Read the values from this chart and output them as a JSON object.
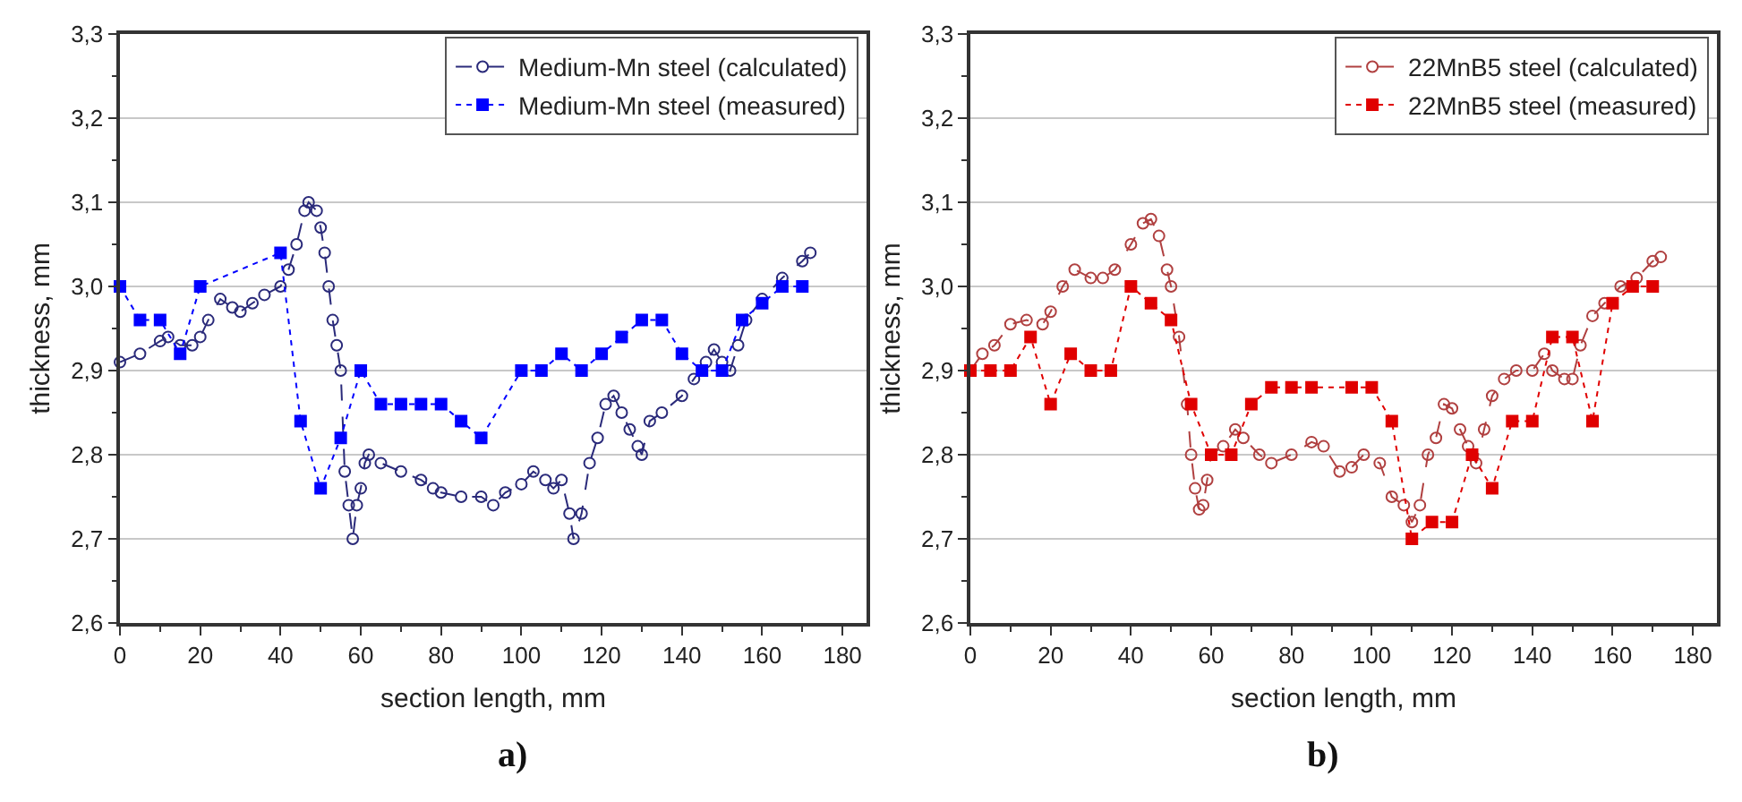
{
  "chart_data": [
    {
      "type": "line",
      "xlabel": "section length, mm",
      "ylabel": "thickness, mm",
      "annotations": [
        "a)"
      ],
      "xlim": [
        0,
        186
      ],
      "xticks": [
        0,
        20,
        40,
        60,
        80,
        100,
        120,
        140,
        160,
        180
      ],
      "ylim": [
        2.6,
        3.3
      ],
      "yticks": [
        {
          "value": 2.6,
          "label": "2,6"
        },
        {
          "value": 2.7,
          "label": "2,7"
        },
        {
          "value": 2.8,
          "label": "2,8"
        },
        {
          "value": 2.9,
          "label": "2,9"
        },
        {
          "value": 3.0,
          "label": "3,0"
        },
        {
          "value": 3.1,
          "label": "3,1"
        },
        {
          "value": 3.2,
          "label": "3,2"
        },
        {
          "value": 3.3,
          "label": "3,3"
        }
      ],
      "grid": "y",
      "legend": "top right",
      "series": [
        {
          "name": "Medium-Mn steel (calculated)",
          "color": "#2a2a7a",
          "marker": "circle",
          "line_style": "dashed",
          "x": [
            0,
            5,
            10,
            12,
            15,
            18,
            20,
            22,
            25,
            28,
            30,
            33,
            36,
            40,
            42,
            44,
            46,
            47,
            49,
            50,
            51,
            52,
            53,
            54,
            55,
            56,
            57,
            58,
            59,
            60,
            61,
            62,
            65,
            70,
            75,
            78,
            80,
            85,
            90,
            93,
            96,
            100,
            103,
            106,
            108,
            110,
            112,
            113,
            115,
            117,
            119,
            121,
            123,
            125,
            127,
            129,
            130,
            132,
            135,
            140,
            143,
            146,
            148,
            150,
            152,
            154,
            156,
            160,
            165,
            170,
            172
          ],
          "values": [
            2.91,
            2.92,
            2.935,
            2.94,
            2.93,
            2.93,
            2.94,
            2.96,
            2.985,
            2.975,
            2.97,
            2.98,
            2.99,
            3.0,
            3.02,
            3.05,
            3.09,
            3.1,
            3.09,
            3.07,
            3.04,
            3.0,
            2.96,
            2.93,
            2.9,
            2.78,
            2.74,
            2.7,
            2.74,
            2.76,
            2.79,
            2.8,
            2.79,
            2.78,
            2.77,
            2.76,
            2.755,
            2.75,
            2.75,
            2.74,
            2.755,
            2.765,
            2.78,
            2.77,
            2.76,
            2.77,
            2.73,
            2.7,
            2.73,
            2.79,
            2.82,
            2.86,
            2.87,
            2.85,
            2.83,
            2.81,
            2.8,
            2.84,
            2.85,
            2.87,
            2.89,
            2.91,
            2.925,
            2.91,
            2.9,
            2.93,
            2.96,
            2.985,
            3.01,
            3.03,
            3.04
          ]
        },
        {
          "name": "Medium-Mn steel (measured)",
          "color": "#0000ff",
          "marker": "square",
          "line_style": "dotted",
          "x": [
            0,
            5,
            10,
            15,
            20,
            40,
            45,
            50,
            55,
            60,
            65,
            70,
            75,
            80,
            85,
            90,
            100,
            105,
            110,
            115,
            120,
            125,
            130,
            135,
            140,
            145,
            150,
            155,
            160,
            165,
            170
          ],
          "values": [
            3.0,
            2.96,
            2.96,
            2.92,
            3.0,
            3.04,
            2.84,
            2.76,
            2.82,
            2.9,
            2.86,
            2.86,
            2.86,
            2.86,
            2.84,
            2.82,
            2.9,
            2.9,
            2.92,
            2.9,
            2.92,
            2.94,
            2.96,
            2.96,
            2.92,
            2.9,
            2.9,
            2.96,
            2.98,
            3.0,
            3.0
          ]
        }
      ]
    },
    {
      "type": "line",
      "xlabel": "section length, mm",
      "ylabel": "thickness, mm",
      "annotations": [
        "b)"
      ],
      "xlim": [
        0,
        186
      ],
      "xticks": [
        0,
        20,
        40,
        60,
        80,
        100,
        120,
        140,
        160,
        180
      ],
      "ylim": [
        2.6,
        3.3
      ],
      "yticks": [
        {
          "value": 2.6,
          "label": "2,6"
        },
        {
          "value": 2.7,
          "label": "2,7"
        },
        {
          "value": 2.8,
          "label": "2,8"
        },
        {
          "value": 2.9,
          "label": "2,9"
        },
        {
          "value": 3.0,
          "label": "3,0"
        },
        {
          "value": 3.1,
          "label": "3,1"
        },
        {
          "value": 3.2,
          "label": "3,2"
        },
        {
          "value": 3.3,
          "label": "3,3"
        }
      ],
      "grid": "y",
      "legend": "top right",
      "series": [
        {
          "name": "22MnB5 steel (calculated)",
          "color": "#b04040",
          "marker": "circle",
          "line_style": "dashed",
          "x": [
            0,
            3,
            6,
            10,
            14,
            18,
            20,
            23,
            26,
            30,
            33,
            36,
            40,
            43,
            45,
            47,
            49,
            50,
            52,
            54,
            55,
            56,
            57,
            58,
            59,
            60,
            63,
            66,
            68,
            72,
            75,
            80,
            85,
            88,
            92,
            95,
            98,
            102,
            105,
            108,
            110,
            112,
            114,
            116,
            118,
            120,
            122,
            124,
            126,
            128,
            130,
            133,
            136,
            140,
            143,
            145,
            148,
            150,
            152,
            155,
            158,
            162,
            166,
            170,
            172
          ],
          "values": [
            2.9,
            2.92,
            2.93,
            2.955,
            2.96,
            2.955,
            2.97,
            3.0,
            3.02,
            3.01,
            3.01,
            3.02,
            3.05,
            3.075,
            3.08,
            3.06,
            3.02,
            3.0,
            2.94,
            2.86,
            2.8,
            2.76,
            2.735,
            2.74,
            2.77,
            2.8,
            2.81,
            2.83,
            2.82,
            2.8,
            2.79,
            2.8,
            2.815,
            2.81,
            2.78,
            2.785,
            2.8,
            2.79,
            2.75,
            2.74,
            2.72,
            2.74,
            2.8,
            2.82,
            2.86,
            2.855,
            2.83,
            2.81,
            2.79,
            2.83,
            2.87,
            2.89,
            2.9,
            2.9,
            2.92,
            2.9,
            2.89,
            2.89,
            2.93,
            2.965,
            2.98,
            3.0,
            3.01,
            3.03,
            3.035
          ]
        },
        {
          "name": "22MnB5 steel (measured)",
          "color": "#e00000",
          "marker": "square",
          "line_style": "dotted",
          "x": [
            0,
            5,
            10,
            15,
            20,
            25,
            30,
            35,
            40,
            45,
            50,
            55,
            60,
            65,
            70,
            75,
            80,
            85,
            95,
            100,
            105,
            110,
            115,
            120,
            125,
            130,
            135,
            140,
            145,
            150,
            155,
            160,
            165,
            170
          ],
          "values": [
            2.9,
            2.9,
            2.9,
            2.94,
            2.86,
            2.92,
            2.9,
            2.9,
            3.0,
            2.98,
            2.96,
            2.86,
            2.8,
            2.8,
            2.86,
            2.88,
            2.88,
            2.88,
            2.88,
            2.88,
            2.84,
            2.7,
            2.72,
            2.72,
            2.8,
            2.76,
            2.84,
            2.84,
            2.94,
            2.94,
            2.84,
            2.98,
            3.0,
            3.0
          ]
        }
      ]
    }
  ]
}
